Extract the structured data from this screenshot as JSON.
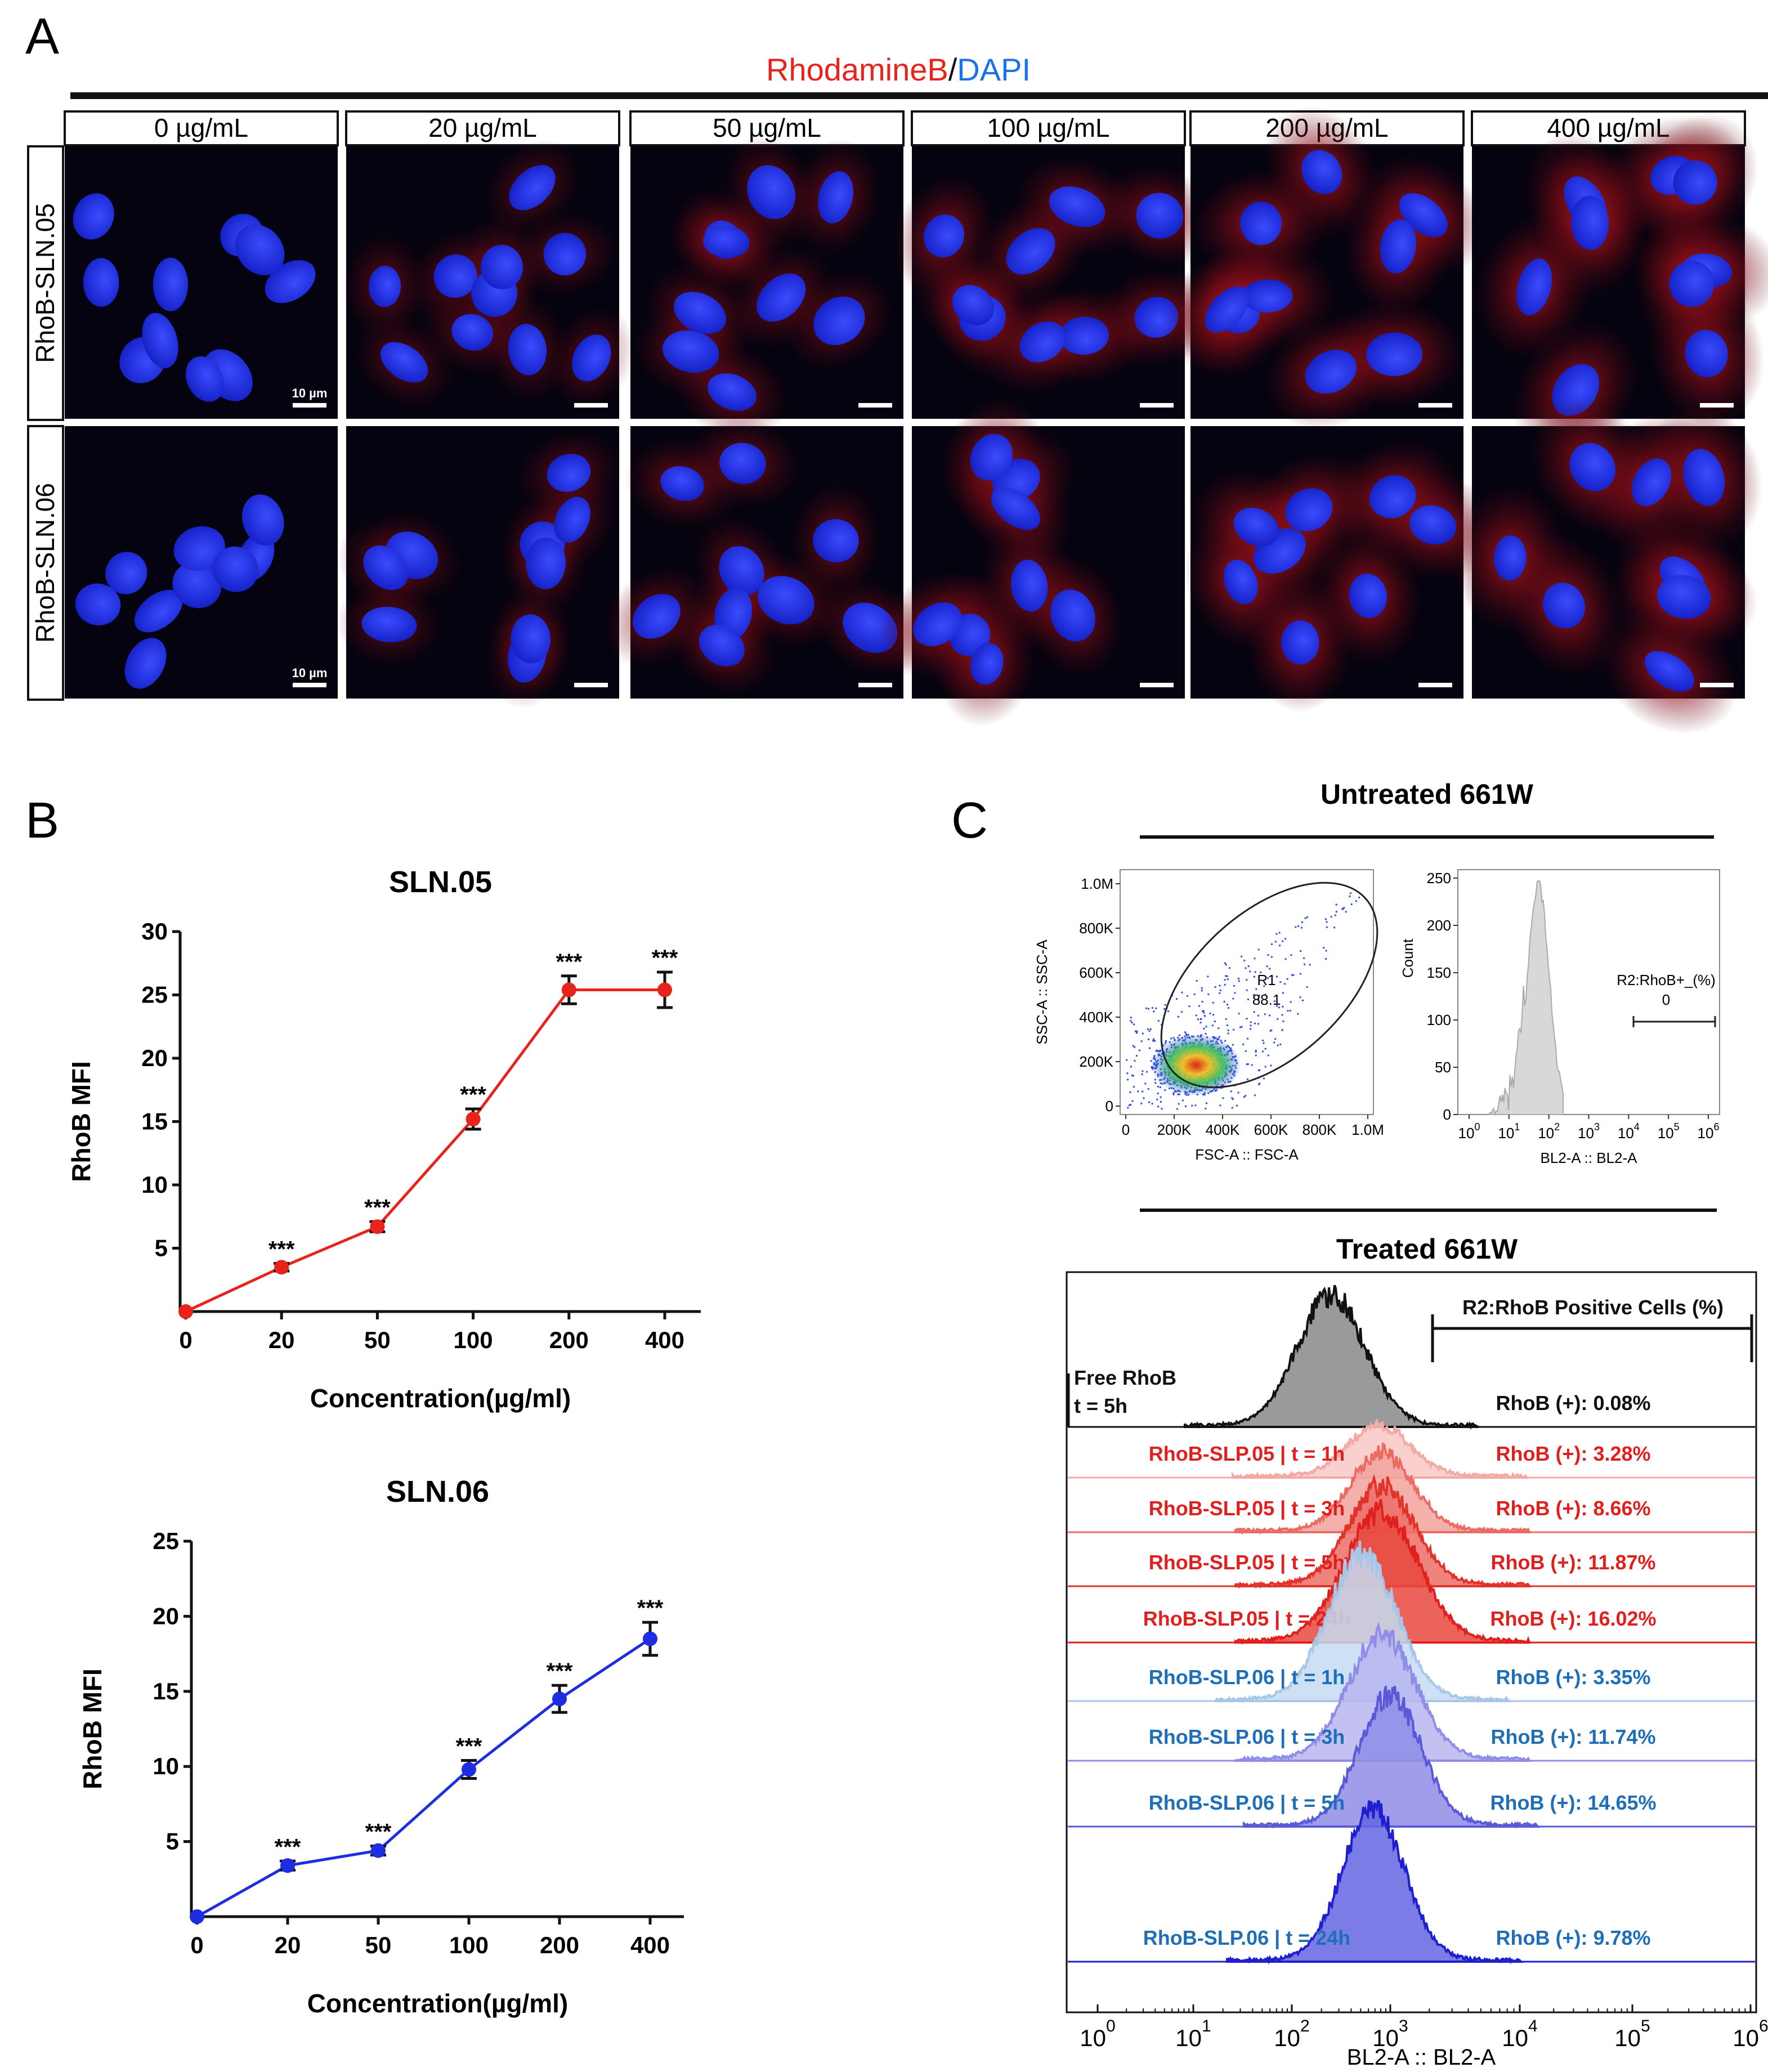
{
  "panel_a": {
    "letter": "A",
    "title_red": "RhodamineB",
    "title_sep": "/",
    "title_blue": "DAPI",
    "columns": [
      "0 µg/mL",
      "20 µg/mL",
      "50 µg/mL",
      "100 µg/mL",
      "200 µg/mL",
      "400 µg/mL"
    ],
    "rows": [
      "RhoB-SLN.05",
      "RhoB-SLN.06"
    ],
    "scale_bar_label": "10 µm",
    "colors": {
      "red": "#e8231c",
      "blue": "#1a73e8",
      "image_bg": "#05030f",
      "nucleus": "#2232e8",
      "cytoplasm": "#a0101a"
    }
  },
  "panel_b": {
    "letter": "B"
  },
  "chart_data": [
    {
      "type": "line",
      "title": "SLN.05",
      "xlabel": "Concentration(µg/ml)",
      "ylabel": "RhoB MFI",
      "categories": [
        "0",
        "20",
        "50",
        "100",
        "200",
        "400"
      ],
      "values": [
        0,
        3.5,
        6.7,
        15.2,
        25.4,
        25.4
      ],
      "errors": [
        0,
        0.3,
        0.4,
        0.8,
        1.1,
        1.4
      ],
      "significance": [
        "",
        "***",
        "***",
        "***",
        "***",
        "***"
      ],
      "yticks": [
        5,
        10,
        15,
        20,
        25,
        30
      ],
      "ylim": [
        0,
        30
      ],
      "color": "#e8231c"
    },
    {
      "type": "line",
      "title": "SLN.06",
      "xlabel": "Concentration(µg/ml)",
      "ylabel": "RhoB MFI",
      "categories": [
        "0",
        "20",
        "50",
        "100",
        "200",
        "400"
      ],
      "values": [
        0,
        3.4,
        4.4,
        9.8,
        14.5,
        18.5
      ],
      "errors": [
        0,
        0.3,
        0.3,
        0.6,
        0.9,
        1.1
      ],
      "significance": [
        "",
        "***",
        "***",
        "***",
        "***",
        "***"
      ],
      "yticks": [
        5,
        10,
        15,
        20,
        25
      ],
      "ylim": [
        0,
        25
      ],
      "color": "#1f2de0"
    }
  ],
  "panel_c": {
    "letter": "C",
    "untreated_title": "Untreated 661W",
    "treated_title": "Treated 661W",
    "scatter": {
      "y_ticks": [
        "1.0M",
        "800K",
        "600K",
        "400K",
        "200K",
        "0"
      ],
      "x_ticks": [
        "0",
        "200K",
        "400K",
        "600K",
        "800K",
        "1.0M"
      ],
      "y_label": "SSC-A :: SSC-A",
      "x_label": "FSC-A :: FSC-A",
      "gate_name": "R1",
      "gate_value": "88.1"
    },
    "histogram": {
      "y_ticks": [
        "250",
        "200",
        "150",
        "100",
        "50",
        "0"
      ],
      "y_label": "Count",
      "x_ticks": [
        {
          "base": "10",
          "exp": "0"
        },
        {
          "base": "10",
          "exp": "1"
        },
        {
          "base": "10",
          "exp": "2"
        },
        {
          "base": "10",
          "exp": "3"
        },
        {
          "base": "10",
          "exp": "4"
        },
        {
          "base": "10",
          "exp": "5"
        },
        {
          "base": "10",
          "exp": "6"
        }
      ],
      "x_label": "BL2-A :: BL2-A",
      "gate_name": "R2:RhoB+_(%)",
      "gate_value": "0"
    },
    "overlay": {
      "gate_label": "R2:RhoB Positive Cells (%)",
      "rows": [
        {
          "name": "Free RhoB",
          "sub": "t = 5h",
          "result": "RhoB (+): 0.08%",
          "color": "#111111"
        },
        {
          "name": "RhoB-SLP.05 | t = 1h",
          "result": "RhoB (+): 3.28%",
          "color": "#e0201e"
        },
        {
          "name": "RhoB-SLP.05 | t = 3h",
          "result": "RhoB (+): 8.66%",
          "color": "#e0201e"
        },
        {
          "name": "RhoB-SLP.05 | t = 5h",
          "result": "RhoB (+): 11.87%",
          "color": "#e0201e"
        },
        {
          "name": "RhoB-SLP.05 | t = 24h",
          "result": "RhoB (+): 16.02%",
          "color": "#e0201e"
        },
        {
          "name": "RhoB-SLP.06 | t = 1h",
          "result": "RhoB (+): 3.35%",
          "color": "#1f6fb8"
        },
        {
          "name": "RhoB-SLP.06 | t = 3h",
          "result": "RhoB (+): 11.74%",
          "color": "#1f6fb8"
        },
        {
          "name": "RhoB-SLP.06 | t = 5h",
          "result": "RhoB (+): 14.65%",
          "color": "#1f6fb8"
        },
        {
          "name": "RhoB-SLP.06 | t = 24h",
          "result": "RhoB (+): 9.78%",
          "color": "#1f6fb8"
        }
      ],
      "x_ticks": [
        {
          "base": "10",
          "exp": "0"
        },
        {
          "base": "10",
          "exp": "1"
        },
        {
          "base": "10",
          "exp": "2"
        },
        {
          "base": "10",
          "exp": "3"
        },
        {
          "base": "10",
          "exp": "4"
        },
        {
          "base": "10",
          "exp": "5"
        },
        {
          "base": "10",
          "exp": "6"
        }
      ],
      "x_label": "BL2-A :: BL2-A"
    }
  }
}
